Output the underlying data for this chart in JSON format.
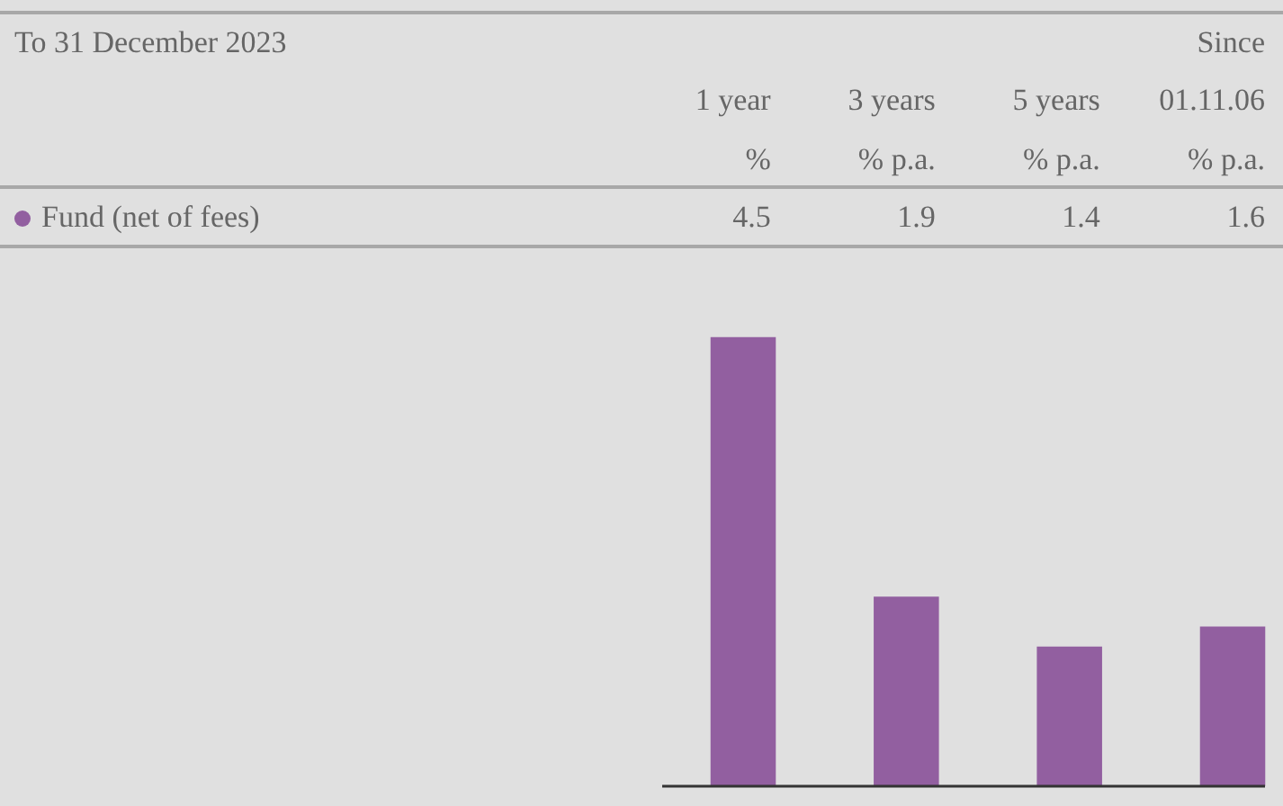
{
  "chart_data": {
    "type": "bar",
    "title": "To 31 December 2023",
    "categories": [
      "1 year",
      "3 years",
      "5 years",
      "Since\n01.11.06"
    ],
    "series": [
      {
        "name": "Fund (net of fees)",
        "color": "#925fa0",
        "values": [
          4.5,
          1.9,
          1.4,
          1.6
        ]
      }
    ],
    "data_labels": true,
    "annotations": [
      "%",
      "% p.a.",
      "% p.a.",
      "% p.a."
    ]
  }
}
